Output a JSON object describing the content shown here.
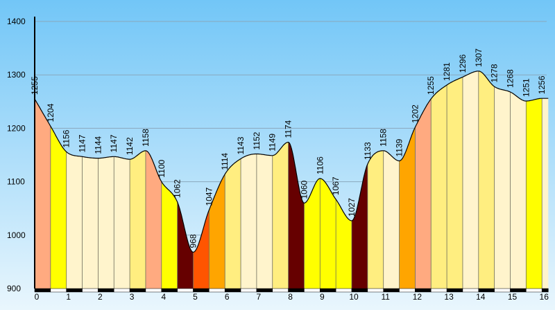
{
  "chart_data": {
    "type": "area",
    "title": "",
    "xlabel": "",
    "ylabel": "",
    "xlim": [
      0,
      16.2
    ],
    "ylim": [
      900,
      1400
    ],
    "x_ticks": [
      0,
      1,
      2,
      3,
      4,
      5,
      6,
      7,
      8,
      9,
      10,
      11,
      12,
      13,
      14,
      15,
      16
    ],
    "y_ticks": [
      900,
      1000,
      1100,
      1200,
      1300,
      1400
    ],
    "grid": true,
    "background": {
      "top": "#72c6f7",
      "bottom": "#e9f6fd"
    },
    "points": [
      {
        "x": 0.0,
        "y": 1255,
        "label": "1255"
      },
      {
        "x": 0.5,
        "y": 1204,
        "label": "1204"
      },
      {
        "x": 1.0,
        "y": 1156,
        "label": "1156"
      },
      {
        "x": 1.5,
        "y": 1147,
        "label": "1147"
      },
      {
        "x": 2.0,
        "y": 1144,
        "label": "1144"
      },
      {
        "x": 2.5,
        "y": 1147,
        "label": "1147"
      },
      {
        "x": 3.0,
        "y": 1142,
        "label": "1142"
      },
      {
        "x": 3.5,
        "y": 1158,
        "label": "1158"
      },
      {
        "x": 4.0,
        "y": 1100,
        "label": "1100"
      },
      {
        "x": 4.5,
        "y": 1062,
        "label": "1062"
      },
      {
        "x": 5.0,
        "y": 968,
        "label": "968"
      },
      {
        "x": 5.5,
        "y": 1047,
        "label": "1047"
      },
      {
        "x": 6.0,
        "y": 1114,
        "label": "1114"
      },
      {
        "x": 6.5,
        "y": 1143,
        "label": "1143"
      },
      {
        "x": 7.0,
        "y": 1152,
        "label": "1152"
      },
      {
        "x": 7.5,
        "y": 1149,
        "label": "1149"
      },
      {
        "x": 8.0,
        "y": 1174,
        "label": "1174"
      },
      {
        "x": 8.5,
        "y": 1060,
        "label": "1060"
      },
      {
        "x": 9.0,
        "y": 1106,
        "label": "1106"
      },
      {
        "x": 9.5,
        "y": 1067,
        "label": "1067"
      },
      {
        "x": 10.0,
        "y": 1027,
        "label": "1027"
      },
      {
        "x": 10.5,
        "y": 1133,
        "label": "1133"
      },
      {
        "x": 11.0,
        "y": 1158,
        "label": "1158"
      },
      {
        "x": 11.5,
        "y": 1139,
        "label": "1139"
      },
      {
        "x": 12.0,
        "y": 1202,
        "label": "1202"
      },
      {
        "x": 12.5,
        "y": 1255,
        "label": "1255"
      },
      {
        "x": 13.0,
        "y": 1281,
        "label": "1281"
      },
      {
        "x": 13.5,
        "y": 1296,
        "label": "1296"
      },
      {
        "x": 14.0,
        "y": 1307,
        "label": "1307"
      },
      {
        "x": 14.5,
        "y": 1278,
        "label": "1278"
      },
      {
        "x": 15.0,
        "y": 1268,
        "label": "1268"
      },
      {
        "x": 15.5,
        "y": 1251,
        "label": "1251"
      },
      {
        "x": 16.0,
        "y": 1256,
        "label": "1256"
      }
    ],
    "segments": [
      {
        "from": 0.0,
        "to": 0.5,
        "color": "#ffaa80"
      },
      {
        "from": 0.5,
        "to": 1.0,
        "color": "#ffff00"
      },
      {
        "from": 1.0,
        "to": 1.5,
        "color": "#fff4cc"
      },
      {
        "from": 1.5,
        "to": 2.0,
        "color": "#fff4cc"
      },
      {
        "from": 2.0,
        "to": 2.5,
        "color": "#fff4cc"
      },
      {
        "from": 2.5,
        "to": 3.0,
        "color": "#fff4cc"
      },
      {
        "from": 3.0,
        "to": 3.5,
        "color": "#ffee80"
      },
      {
        "from": 3.5,
        "to": 4.0,
        "color": "#ffaa80"
      },
      {
        "from": 4.0,
        "to": 4.5,
        "color": "#ffff00"
      },
      {
        "from": 4.5,
        "to": 5.0,
        "color": "#660000"
      },
      {
        "from": 5.0,
        "to": 5.5,
        "color": "#ff5500"
      },
      {
        "from": 5.5,
        "to": 6.0,
        "color": "#ffa500"
      },
      {
        "from": 6.0,
        "to": 6.5,
        "color": "#ffee80"
      },
      {
        "from": 6.5,
        "to": 7.0,
        "color": "#fff4cc"
      },
      {
        "from": 7.0,
        "to": 7.5,
        "color": "#fff4cc"
      },
      {
        "from": 7.5,
        "to": 8.0,
        "color": "#ffee80"
      },
      {
        "from": 8.0,
        "to": 8.5,
        "color": "#660000"
      },
      {
        "from": 8.5,
        "to": 9.0,
        "color": "#ffff00"
      },
      {
        "from": 9.0,
        "to": 9.5,
        "color": "#ffff00"
      },
      {
        "from": 9.5,
        "to": 10.0,
        "color": "#ffff00"
      },
      {
        "from": 10.0,
        "to": 10.5,
        "color": "#660000"
      },
      {
        "from": 10.5,
        "to": 11.0,
        "color": "#ffee80"
      },
      {
        "from": 11.0,
        "to": 11.5,
        "color": "#fff4cc"
      },
      {
        "from": 11.5,
        "to": 12.0,
        "color": "#ffa500"
      },
      {
        "from": 12.0,
        "to": 12.5,
        "color": "#ffaa80"
      },
      {
        "from": 12.5,
        "to": 13.0,
        "color": "#ffee80"
      },
      {
        "from": 13.0,
        "to": 13.5,
        "color": "#ffee80"
      },
      {
        "from": 13.5,
        "to": 14.0,
        "color": "#fff4cc"
      },
      {
        "from": 14.0,
        "to": 14.5,
        "color": "#ffee80"
      },
      {
        "from": 14.5,
        "to": 15.0,
        "color": "#fff4cc"
      },
      {
        "from": 15.0,
        "to": 15.5,
        "color": "#fff4cc"
      },
      {
        "from": 15.5,
        "to": 16.0,
        "color": "#ffff00"
      },
      {
        "from": 16.0,
        "to": 16.2,
        "color": "#fff4cc"
      }
    ],
    "line_color": "#000000",
    "grid_color": "#8aa8bc"
  }
}
